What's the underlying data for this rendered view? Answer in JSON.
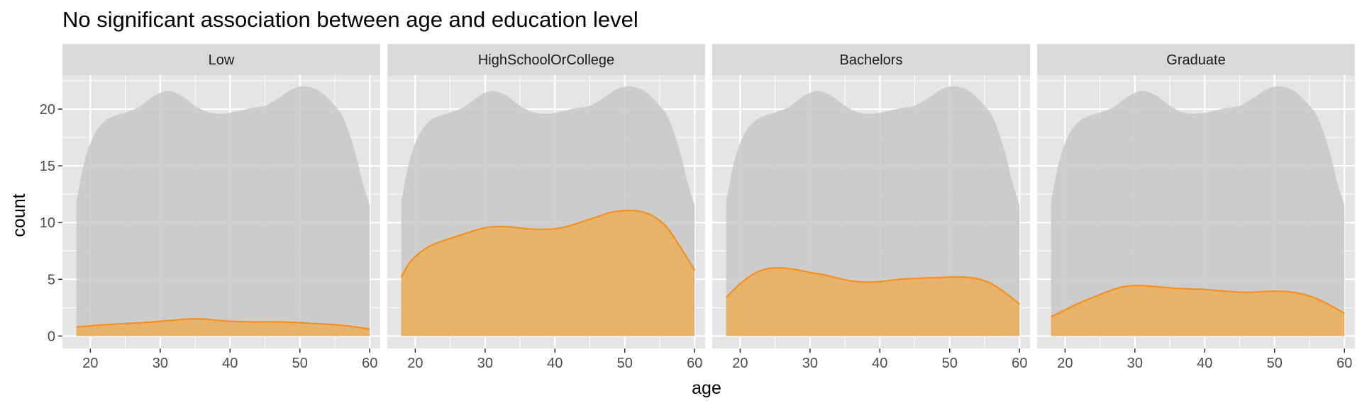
{
  "chart_data": {
    "type": "area",
    "title": "No significant association between age and education level",
    "xlabel": "age",
    "ylabel": "count",
    "xlim": [
      16,
      61.5
    ],
    "ylim": [
      -1.1,
      23
    ],
    "x_ticks": [
      20,
      30,
      40,
      50,
      60
    ],
    "y_ticks": [
      0,
      5,
      10,
      15,
      20
    ],
    "grid": true,
    "colors": {
      "panel_bg": "#e5e5e5",
      "strip_bg": "#d9d9d9",
      "grid": "#ffffff",
      "background_area": "#c8c8c8",
      "fill": "#e8b165",
      "line": "#f5901e"
    },
    "background_series": {
      "x": [
        18,
        19,
        20,
        21,
        22,
        23,
        25,
        27,
        29,
        31,
        33,
        35,
        37,
        39,
        41,
        43,
        45,
        47,
        49,
        51,
        53,
        55,
        56,
        57,
        58,
        59,
        60
      ],
      "y": [
        11.8,
        15,
        17,
        18.2,
        18.9,
        19.3,
        19.7,
        20.2,
        21.1,
        21.6,
        21.2,
        20.3,
        19.7,
        19.6,
        19.8,
        20.1,
        20.3,
        21,
        21.8,
        22,
        21.5,
        20.3,
        19.5,
        18,
        16,
        13.5,
        11.5
      ]
    },
    "facets": [
      {
        "name": "Low",
        "x": [
          18,
          20,
          22,
          25,
          28,
          30,
          32,
          34,
          36,
          38,
          40,
          43,
          46,
          49,
          52,
          55,
          58,
          60
        ],
        "y": [
          0.8,
          0.9,
          1.0,
          1.1,
          1.2,
          1.3,
          1.4,
          1.5,
          1.5,
          1.4,
          1.3,
          1.25,
          1.25,
          1.2,
          1.1,
          1.0,
          0.8,
          0.6
        ]
      },
      {
        "name": "HighSchoolOrCollege",
        "x": [
          18,
          19,
          20,
          22,
          24,
          26,
          28,
          30,
          32,
          34,
          36,
          38,
          40,
          42,
          44,
          46,
          48,
          50,
          52,
          54,
          56,
          58,
          60
        ],
        "y": [
          5.2,
          6.3,
          7.0,
          7.9,
          8.4,
          8.8,
          9.2,
          9.55,
          9.65,
          9.6,
          9.45,
          9.4,
          9.45,
          9.7,
          10.1,
          10.5,
          10.9,
          11.05,
          11.0,
          10.6,
          9.6,
          7.8,
          5.8
        ]
      },
      {
        "name": "Bachelors",
        "x": [
          18,
          20,
          22,
          24,
          26,
          28,
          30,
          32,
          34,
          36,
          38,
          40,
          42,
          44,
          46,
          48,
          50,
          52,
          54,
          56,
          58,
          60
        ],
        "y": [
          3.4,
          4.6,
          5.5,
          5.95,
          6.0,
          5.85,
          5.6,
          5.4,
          5.1,
          4.85,
          4.75,
          4.8,
          4.95,
          5.05,
          5.1,
          5.15,
          5.2,
          5.2,
          5.05,
          4.6,
          3.8,
          2.8
        ]
      },
      {
        "name": "Graduate",
        "x": [
          18,
          20,
          22,
          24,
          26,
          28,
          30,
          32,
          34,
          36,
          38,
          40,
          42,
          44,
          46,
          48,
          50,
          52,
          54,
          56,
          58,
          60
        ],
        "y": [
          1.7,
          2.3,
          2.9,
          3.4,
          3.9,
          4.3,
          4.45,
          4.4,
          4.3,
          4.2,
          4.15,
          4.1,
          4.0,
          3.9,
          3.85,
          3.9,
          3.95,
          3.9,
          3.7,
          3.3,
          2.7,
          2.0
        ]
      }
    ]
  }
}
